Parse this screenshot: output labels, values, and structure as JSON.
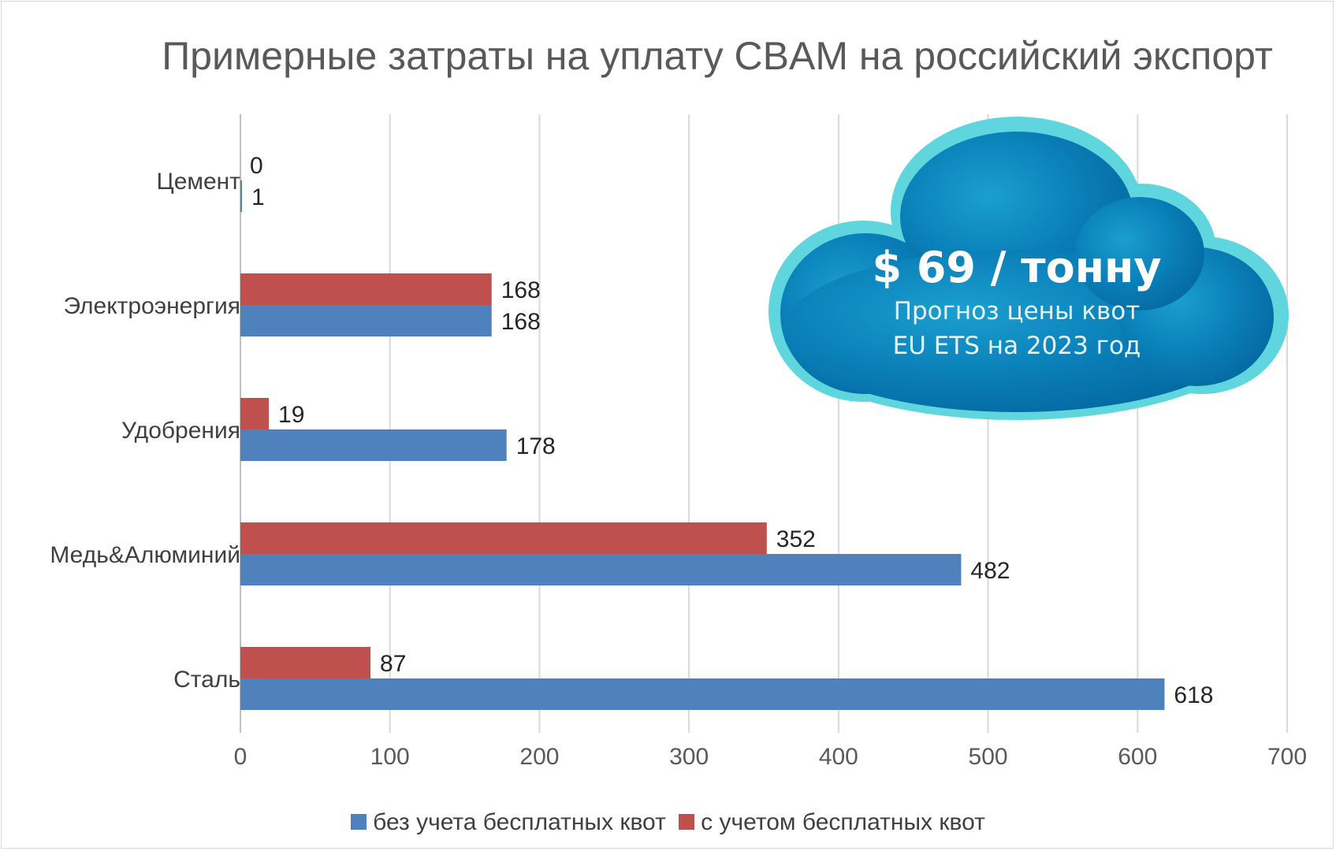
{
  "chart_data": {
    "type": "bar",
    "orientation": "horizontal",
    "title": "Примерные затраты на уплату CBAM на российский экспорт",
    "categories": [
      "Цемент",
      "Электроэнергия",
      "Удобрения",
      "Медь&Алюминий",
      "Сталь"
    ],
    "series": [
      {
        "name": "без учета бесплатных  квот",
        "color": "#4f81bd",
        "values": [
          1,
          168,
          178,
          482,
          618
        ]
      },
      {
        "name": "с учетом бесплатных квот",
        "color": "#c0504d",
        "values": [
          0,
          168,
          19,
          352,
          87
        ]
      }
    ],
    "xlim": [
      0,
      700
    ],
    "xticks": [
      0,
      100,
      200,
      300,
      400,
      500,
      600,
      700
    ],
    "grid": true,
    "legend_position": "bottom"
  },
  "cloud": {
    "price": "$ 69 / тонну",
    "line1": "Прогноз цены квот",
    "line2": "EU ETS на 2023 год"
  }
}
